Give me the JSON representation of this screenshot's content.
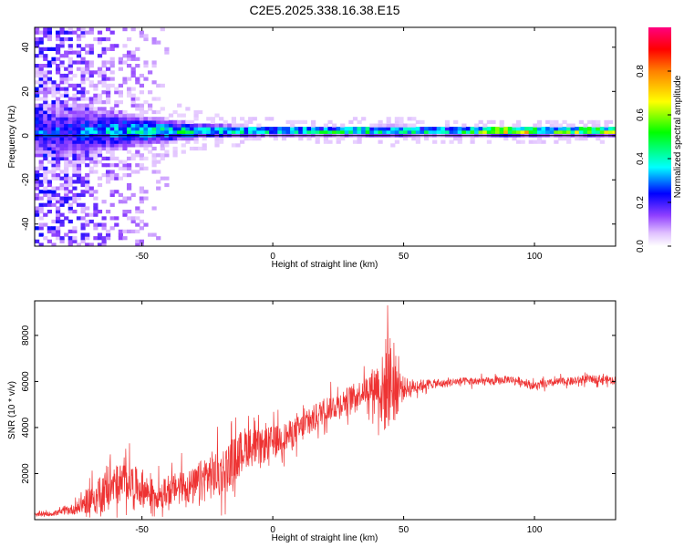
{
  "title": "C2E5.2025.338.16.38.E15",
  "chart_data": [
    {
      "type": "heatmap",
      "id": "spectrogram",
      "xlabel": "Height of straight line (km)",
      "ylabel": "Frequency (Hz)",
      "xlim": [
        -91,
        131
      ],
      "ylim": [
        -50,
        49
      ],
      "xticks": [
        -50,
        0,
        50,
        100
      ],
      "yticks": [
        -40,
        -20,
        0,
        20,
        40
      ],
      "colorbar": {
        "label": "Normalized spectral amplitude",
        "range": [
          0.0,
          1.0
        ],
        "ticks": [
          0.0,
          0.2,
          0.4,
          0.6,
          0.8
        ],
        "colors": [
          "#ffffff",
          "#c080ff",
          "#6000ff",
          "#0000ff",
          "#00ffff",
          "#00ff00",
          "#ffff00",
          "#ff8000",
          "#ff0000",
          "#ff0080"
        ]
      },
      "ridge": {
        "center_frequency_hz": 1.5,
        "description_points_km": [
          -75,
          -60,
          -45,
          -30,
          -15,
          0,
          15,
          30,
          45,
          60,
          75,
          90,
          105,
          120,
          131
        ],
        "band_halfwidth_hz": [
          14,
          10,
          7,
          4,
          3,
          2.5,
          2.5,
          2.5,
          3,
          2.5,
          2.5,
          2.5,
          2.5,
          2.5,
          2.5
        ],
        "peak_amplitude": [
          0.3,
          0.4,
          0.45,
          0.5,
          0.5,
          0.5,
          0.55,
          0.6,
          0.55,
          0.5,
          0.6,
          0.95,
          0.6,
          0.8,
          0.8
        ]
      }
    },
    {
      "type": "line",
      "id": "snr",
      "xlabel": "Height of straight line (km)",
      "ylabel": "SNR (10 * v/v)",
      "xlim": [
        -91,
        131
      ],
      "ylim": [
        0,
        9500
      ],
      "xticks": [
        -50,
        0,
        50,
        100
      ],
      "yticks": [
        2000,
        4000,
        6000,
        8000
      ],
      "color": "#ee3333",
      "series": [
        {
          "name": "SNR",
          "x": [
            -91,
            -85,
            -80,
            -75,
            -70,
            -65,
            -60,
            -55,
            -50,
            -45,
            -40,
            -35,
            -30,
            -25,
            -20,
            -15,
            -10,
            -5,
            0,
            5,
            10,
            15,
            20,
            25,
            30,
            35,
            40,
            42,
            44,
            46,
            50,
            55,
            60,
            65,
            70,
            75,
            80,
            85,
            90,
            95,
            100,
            105,
            110,
            115,
            120,
            125,
            131
          ],
          "y": [
            200,
            250,
            350,
            500,
            900,
            1200,
            1500,
            1700,
            1300,
            1100,
            1200,
            1500,
            1400,
            1900,
            2000,
            2600,
            3200,
            3100,
            3400,
            3600,
            3900,
            4300,
            4800,
            5000,
            5300,
            5600,
            5900,
            5400,
            6200,
            5800,
            5700,
            5800,
            5900,
            5900,
            6000,
            6000,
            6000,
            6000,
            6100,
            6000,
            5800,
            5900,
            6000,
            6000,
            6100,
            6100,
            6050
          ],
          "noise_amplitude": [
            100,
            150,
            200,
            400,
            900,
            1300,
            1300,
            1200,
            1100,
            900,
            900,
            1000,
            1200,
            1500,
            1500,
            1400,
            1300,
            1100,
            1000,
            900,
            900,
            900,
            800,
            800,
            800,
            800,
            1400,
            2600,
            3300,
            2400,
            700,
            400,
            300,
            250,
            250,
            250,
            250,
            250,
            250,
            250,
            250,
            250,
            250,
            250,
            250,
            250,
            250
          ]
        }
      ]
    }
  ]
}
